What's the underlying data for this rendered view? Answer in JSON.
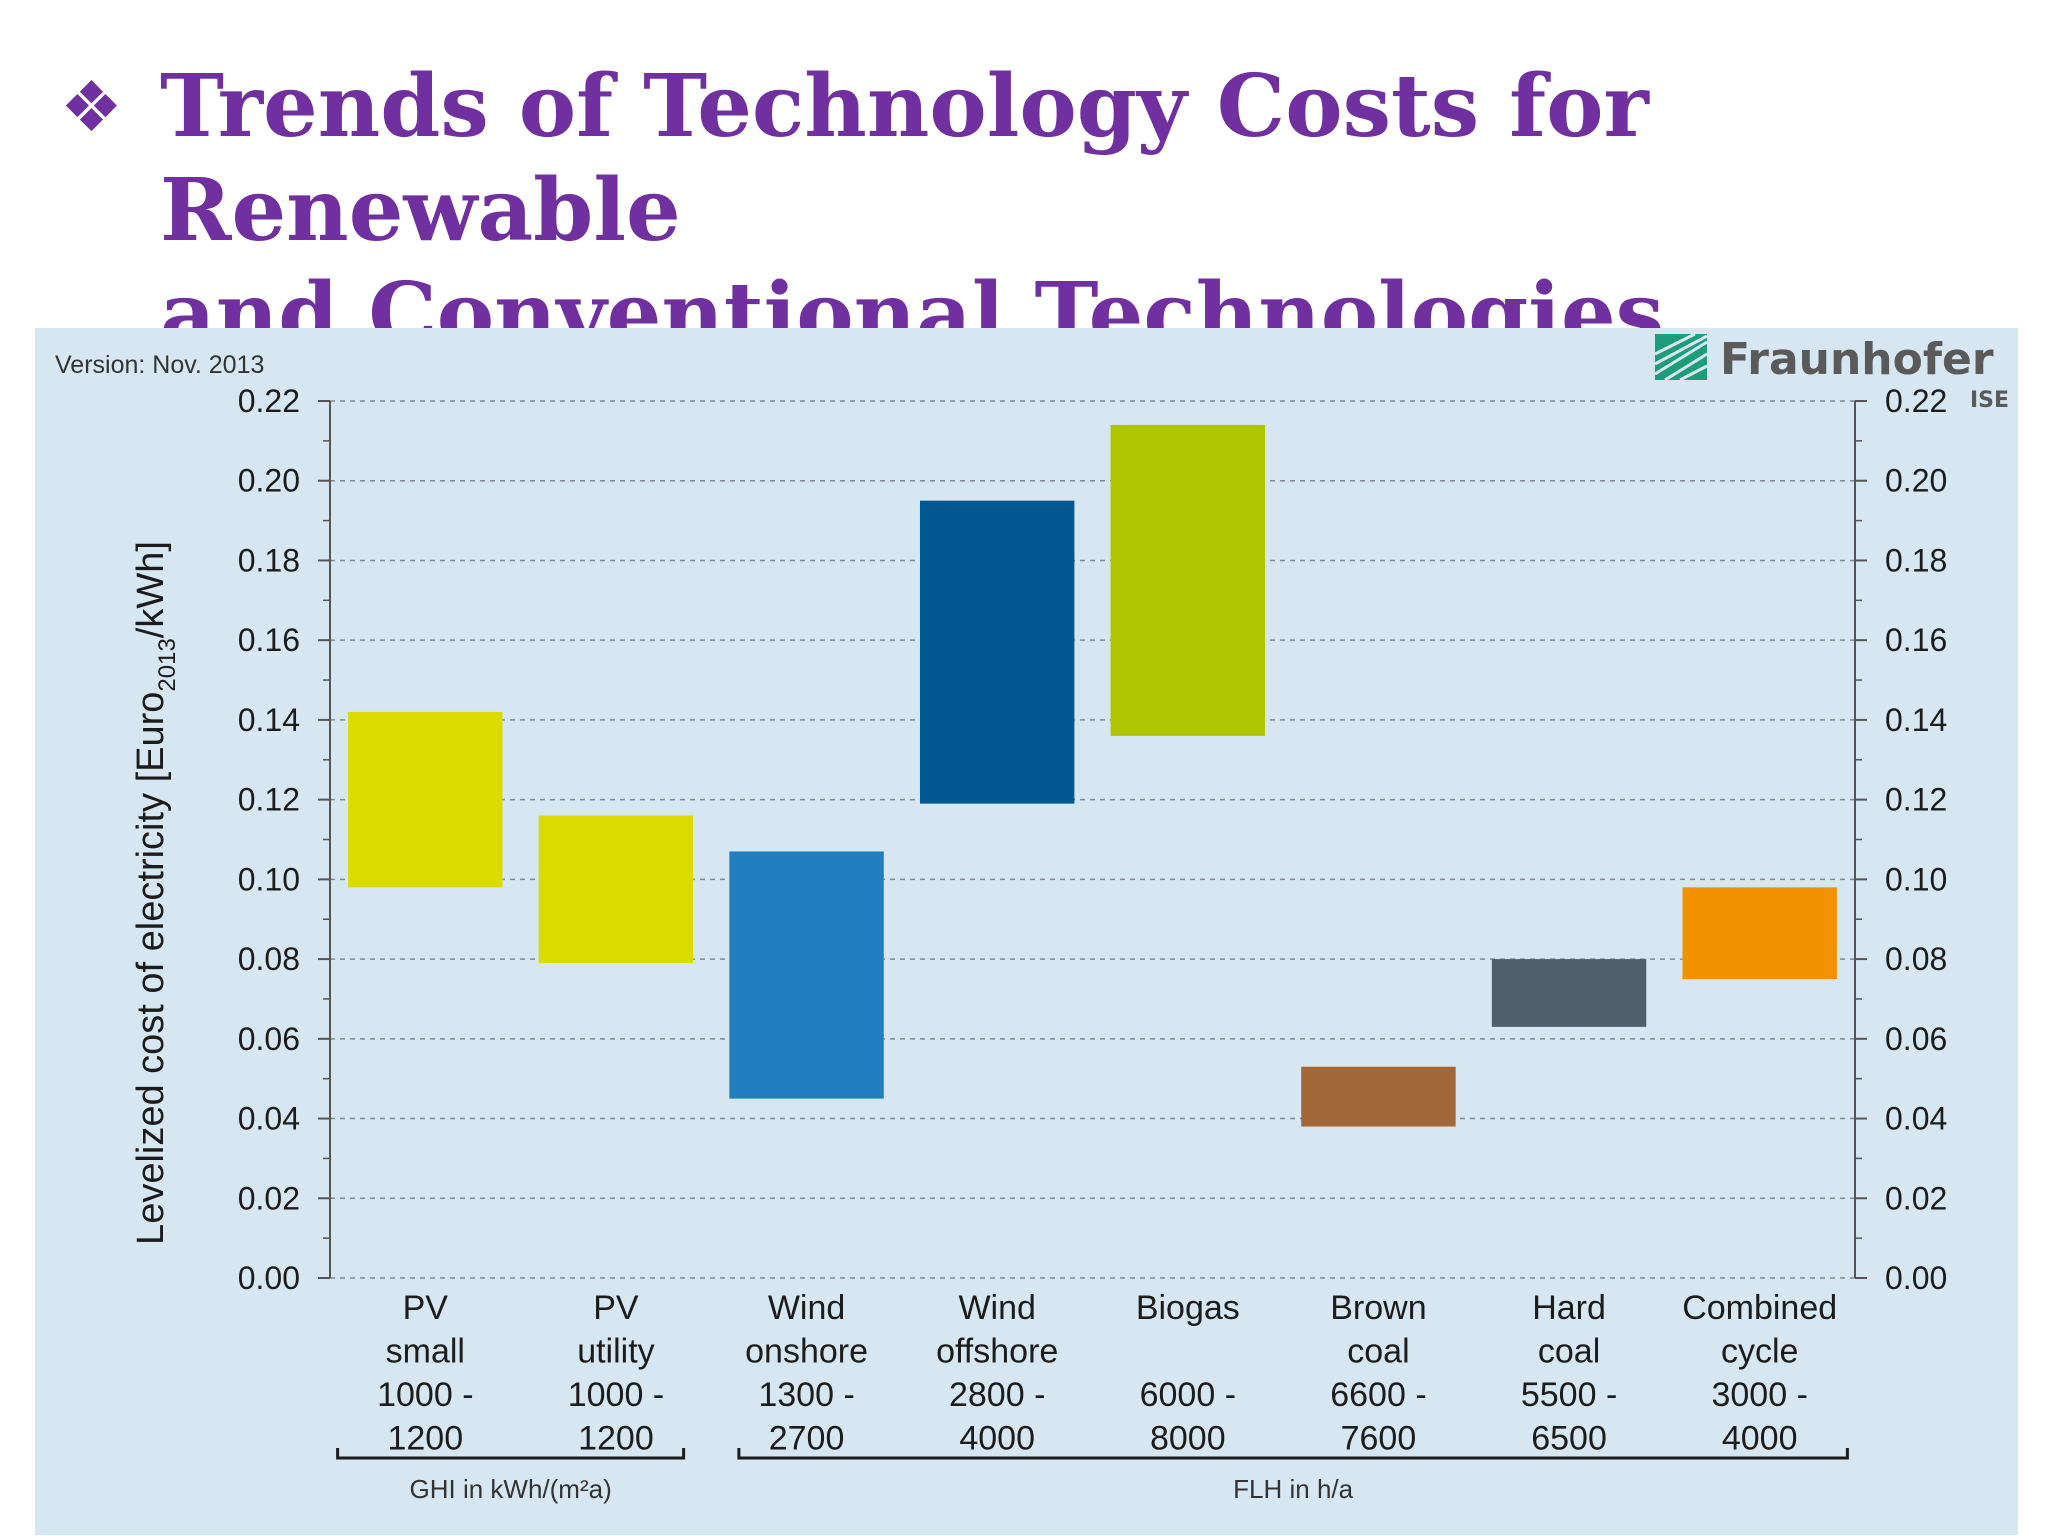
{
  "slide": {
    "bullet": "❖",
    "title_line1": "Trends of Technology Costs for Renewable",
    "title_line2": "and Conventional Technologies"
  },
  "chart_data": {
    "type": "bar",
    "subtype": "floating-range",
    "version_note": "Version: Nov. 2013",
    "brand": {
      "name": "Fraunhofer",
      "sub": "ISE",
      "icon": "fraunhofer-logo-icon"
    },
    "ylabel": "Levelized cost of electricity [Euro2013/kWh]",
    "ylabel_parts": {
      "before": "Levelized cost of electricity [Euro",
      "subscript": "2013",
      "after": "/kWh]"
    },
    "ylim": [
      0,
      0.22
    ],
    "y_ticks": [
      "0.00",
      "0.02",
      "0.04",
      "0.06",
      "0.08",
      "0.10",
      "0.12",
      "0.14",
      "0.16",
      "0.18",
      "0.20",
      "0.22"
    ],
    "grid": true,
    "categories": [
      {
        "lines": [
          "PV",
          "small",
          "1000 -",
          "1200"
        ],
        "low": 0.098,
        "high": 0.142,
        "color": "#dcdb00"
      },
      {
        "lines": [
          "PV",
          "utility",
          "1000 -",
          "1200"
        ],
        "low": 0.079,
        "high": 0.116,
        "color": "#dcdb00"
      },
      {
        "lines": [
          "Wind",
          "onshore",
          "1300 -",
          "2700"
        ],
        "low": 0.045,
        "high": 0.107,
        "color": "#1f7fc1"
      },
      {
        "lines": [
          "Wind",
          "offshore",
          "2800 -",
          "4000"
        ],
        "low": 0.119,
        "high": 0.195,
        "color": "#01578f"
      },
      {
        "lines": [
          "Biogas",
          "",
          "6000 -",
          "8000"
        ],
        "low": 0.136,
        "high": 0.214,
        "color": "#afc500"
      },
      {
        "lines": [
          "Brown",
          "coal",
          "6600 -",
          "7600"
        ],
        "low": 0.038,
        "high": 0.053,
        "color": "#a36637"
      },
      {
        "lines": [
          "Hard",
          "coal",
          "5500 -",
          "6500"
        ],
        "low": 0.063,
        "high": 0.08,
        "color": "#4f5f6b"
      },
      {
        "lines": [
          "Combined",
          "cycle",
          "3000 -",
          "4000"
        ],
        "low": 0.075,
        "high": 0.098,
        "color": "#f39200"
      }
    ],
    "group_labels": [
      {
        "label": "GHI in kWh/(m²a)",
        "from": 0,
        "to": 1
      },
      {
        "label": "FLH in h/a",
        "from": 2,
        "to": 7
      }
    ]
  }
}
